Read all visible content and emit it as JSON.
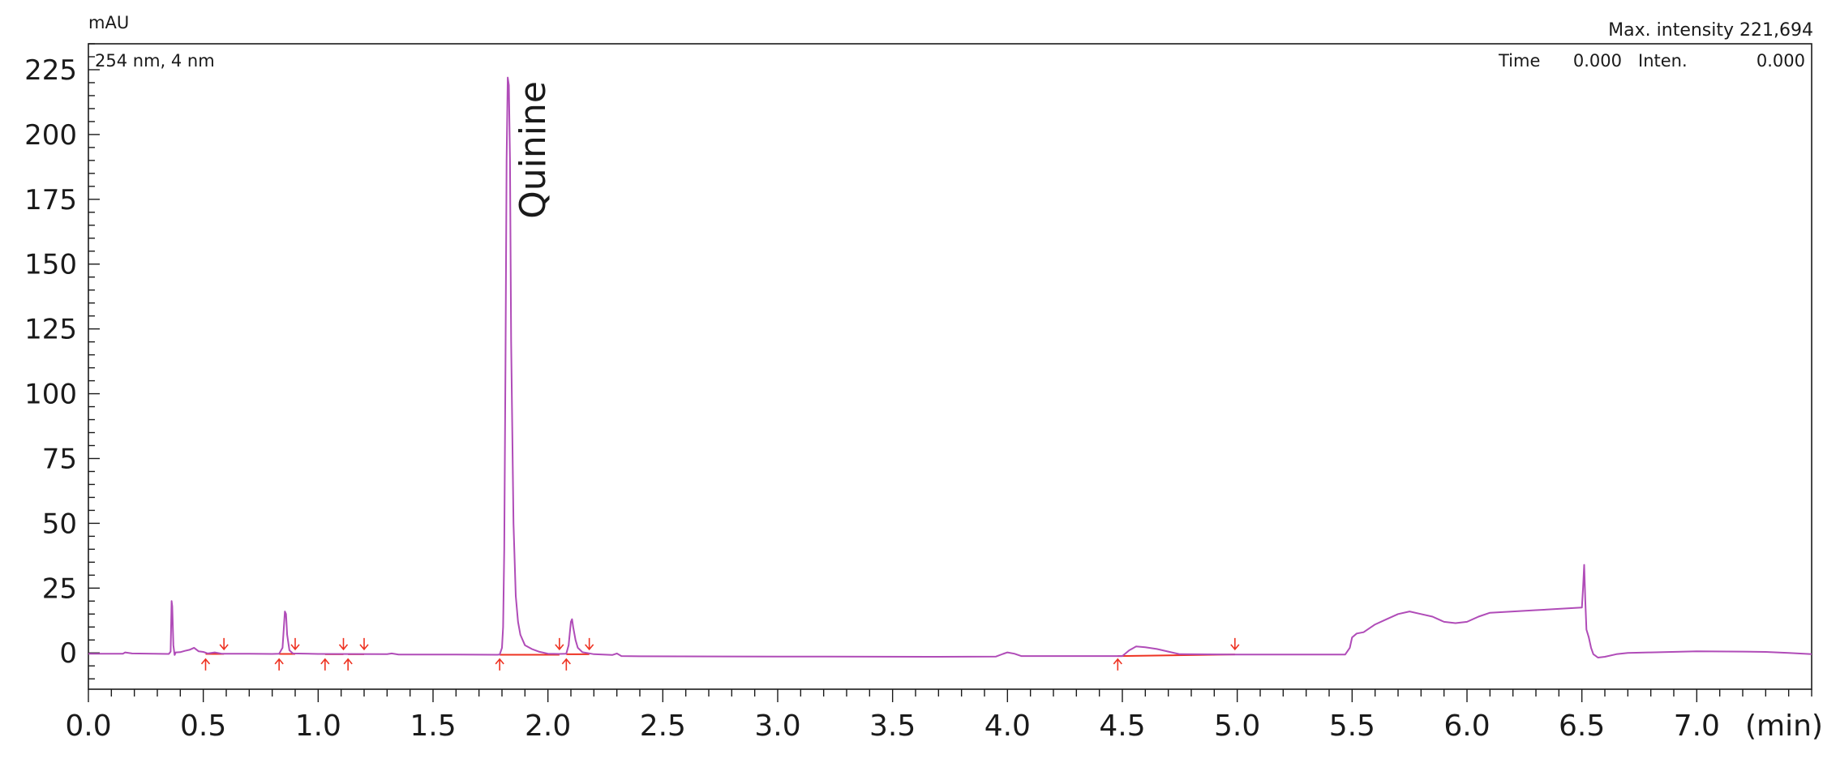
{
  "chart_data": {
    "type": "line",
    "y_unit": "mAU",
    "x_unit": "(min)",
    "channel_label": "254 nm, 4 nm",
    "max_intensity_label": "Max. intensity 221,694",
    "cursor": {
      "time_label": "Time",
      "time_value": "0.000",
      "inten_label": "Inten.",
      "inten_value": "0.000"
    },
    "xlim": [
      0.0,
      7.5
    ],
    "ylim": [
      -14,
      235
    ],
    "x_ticks": [
      0.0,
      0.5,
      1.0,
      1.5,
      2.0,
      2.5,
      3.0,
      3.5,
      4.0,
      4.5,
      5.0,
      5.5,
      6.0,
      6.5,
      7.0
    ],
    "x_tick_labels": [
      "0.0",
      "0.5",
      "1.0",
      "1.5",
      "2.0",
      "2.5",
      "3.0",
      "3.5",
      "4.0",
      "4.5",
      "5.0",
      "5.5",
      "6.0",
      "6.5",
      "7.0"
    ],
    "x_minor_step": 0.1,
    "y_ticks": [
      0,
      25,
      50,
      75,
      100,
      125,
      150,
      175,
      200,
      225
    ],
    "y_tick_labels": [
      "0",
      "25",
      "50",
      "75",
      "100",
      "125",
      "150",
      "175",
      "200",
      "225"
    ],
    "y_minor_step": 5,
    "grid": false,
    "colors": {
      "trace": "#b04cb8",
      "baseline": "#ee3322",
      "markers": "#ee3322",
      "frame": "#1a1a1a"
    },
    "peak_annotation": {
      "text": "Quinine",
      "x": 1.91,
      "y": 190
    },
    "series": [
      {
        "points": [
          [
            0.0,
            -0.3
          ],
          [
            0.15,
            -0.3
          ],
          [
            0.16,
            0.2
          ],
          [
            0.19,
            -0.2
          ],
          [
            0.35,
            -0.4
          ],
          [
            0.358,
            0.5
          ],
          [
            0.362,
            20
          ],
          [
            0.365,
            18
          ],
          [
            0.37,
            3
          ],
          [
            0.375,
            -0.8
          ],
          [
            0.38,
            0.2
          ],
          [
            0.4,
            0.3
          ],
          [
            0.42,
            0.8
          ],
          [
            0.44,
            1.2
          ],
          [
            0.46,
            2.0
          ],
          [
            0.48,
            0.6
          ],
          [
            0.5,
            0.4
          ],
          [
            0.52,
            -0.2
          ],
          [
            0.55,
            0.2
          ],
          [
            0.58,
            -0.3
          ],
          [
            0.7,
            -0.3
          ],
          [
            0.8,
            -0.4
          ],
          [
            0.83,
            -0.3
          ],
          [
            0.845,
            2
          ],
          [
            0.855,
            16
          ],
          [
            0.86,
            15
          ],
          [
            0.865,
            7
          ],
          [
            0.875,
            1
          ],
          [
            0.89,
            -0.2
          ],
          [
            1.0,
            -0.4
          ],
          [
            1.3,
            -0.5
          ],
          [
            1.32,
            -0.2
          ],
          [
            1.35,
            -0.6
          ],
          [
            1.6,
            -0.6
          ],
          [
            1.78,
            -0.7
          ],
          [
            1.79,
            -0.6
          ],
          [
            1.8,
            2
          ],
          [
            1.805,
            10
          ],
          [
            1.81,
            40
          ],
          [
            1.815,
            110
          ],
          [
            1.82,
            190
          ],
          [
            1.825,
            222
          ],
          [
            1.83,
            219
          ],
          [
            1.835,
            190
          ],
          [
            1.84,
            120
          ],
          [
            1.85,
            50
          ],
          [
            1.86,
            22
          ],
          [
            1.87,
            12
          ],
          [
            1.88,
            7
          ],
          [
            1.9,
            3
          ],
          [
            1.93,
            1.5
          ],
          [
            1.96,
            0.5
          ],
          [
            2.0,
            -0.3
          ],
          [
            2.05,
            -0.4
          ],
          [
            2.08,
            -0.3
          ],
          [
            2.09,
            3
          ],
          [
            2.1,
            12
          ],
          [
            2.105,
            13
          ],
          [
            2.11,
            10
          ],
          [
            2.12,
            5
          ],
          [
            2.13,
            2
          ],
          [
            2.15,
            0.3
          ],
          [
            2.2,
            -0.5
          ],
          [
            2.28,
            -0.8
          ],
          [
            2.3,
            -0.2
          ],
          [
            2.32,
            -1.2
          ],
          [
            2.4,
            -1.3
          ],
          [
            3.0,
            -1.4
          ],
          [
            3.7,
            -1.5
          ],
          [
            3.95,
            -1.4
          ],
          [
            3.98,
            -0.4
          ],
          [
            4.0,
            0.2
          ],
          [
            4.03,
            -0.3
          ],
          [
            4.06,
            -1.2
          ],
          [
            4.5,
            -1.2
          ],
          [
            4.53,
            1.0
          ],
          [
            4.56,
            2.5
          ],
          [
            4.6,
            2.2
          ],
          [
            4.65,
            1.5
          ],
          [
            4.7,
            0.5
          ],
          [
            4.75,
            -0.5
          ],
          [
            5.0,
            -0.6
          ],
          [
            5.47,
            -0.6
          ],
          [
            5.49,
            2
          ],
          [
            5.5,
            6
          ],
          [
            5.52,
            7.5
          ],
          [
            5.55,
            8
          ],
          [
            5.6,
            11
          ],
          [
            5.65,
            13
          ],
          [
            5.7,
            15
          ],
          [
            5.75,
            16
          ],
          [
            5.8,
            15
          ],
          [
            5.85,
            14
          ],
          [
            5.9,
            12
          ],
          [
            5.95,
            11.5
          ],
          [
            6.0,
            12
          ],
          [
            6.05,
            14
          ],
          [
            6.1,
            15.5
          ],
          [
            6.2,
            16
          ],
          [
            6.3,
            16.5
          ],
          [
            6.4,
            17
          ],
          [
            6.5,
            17.5
          ],
          [
            6.505,
            25
          ],
          [
            6.51,
            34
          ],
          [
            6.515,
            20
          ],
          [
            6.52,
            9
          ],
          [
            6.53,
            6
          ],
          [
            6.54,
            2
          ],
          [
            6.55,
            -0.5
          ],
          [
            6.57,
            -1.8
          ],
          [
            6.6,
            -1.5
          ],
          [
            6.65,
            -0.5
          ],
          [
            6.7,
            0.0
          ],
          [
            6.8,
            0.2
          ],
          [
            7.0,
            0.6
          ],
          [
            7.2,
            0.5
          ],
          [
            7.3,
            0.4
          ],
          [
            7.4,
            0.0
          ],
          [
            7.5,
            -0.5
          ]
        ]
      }
    ],
    "baselines": [
      [
        [
          0.51,
          -0.4
        ],
        [
          0.59,
          -0.4
        ]
      ],
      [
        [
          0.83,
          -0.4
        ],
        [
          0.9,
          -0.4
        ]
      ],
      [
        [
          1.03,
          -0.5
        ],
        [
          1.11,
          -0.5
        ]
      ],
      [
        [
          1.13,
          -0.5
        ],
        [
          1.2,
          -0.5
        ]
      ],
      [
        [
          1.79,
          -0.7
        ],
        [
          2.05,
          -0.7
        ]
      ],
      [
        [
          2.08,
          -0.5
        ],
        [
          2.18,
          -0.5
        ]
      ],
      [
        [
          4.48,
          -1.2
        ],
        [
          4.99,
          -0.6
        ]
      ]
    ],
    "peak_markers": [
      {
        "x": 0.51,
        "kind": "start"
      },
      {
        "x": 0.59,
        "kind": "end"
      },
      {
        "x": 0.83,
        "kind": "start"
      },
      {
        "x": 0.9,
        "kind": "end"
      },
      {
        "x": 1.03,
        "kind": "start"
      },
      {
        "x": 1.11,
        "kind": "end"
      },
      {
        "x": 1.13,
        "kind": "start"
      },
      {
        "x": 1.2,
        "kind": "end"
      },
      {
        "x": 1.79,
        "kind": "start"
      },
      {
        "x": 2.05,
        "kind": "end"
      },
      {
        "x": 2.08,
        "kind": "start"
      },
      {
        "x": 2.18,
        "kind": "end"
      },
      {
        "x": 4.48,
        "kind": "start"
      },
      {
        "x": 4.99,
        "kind": "end"
      }
    ]
  }
}
